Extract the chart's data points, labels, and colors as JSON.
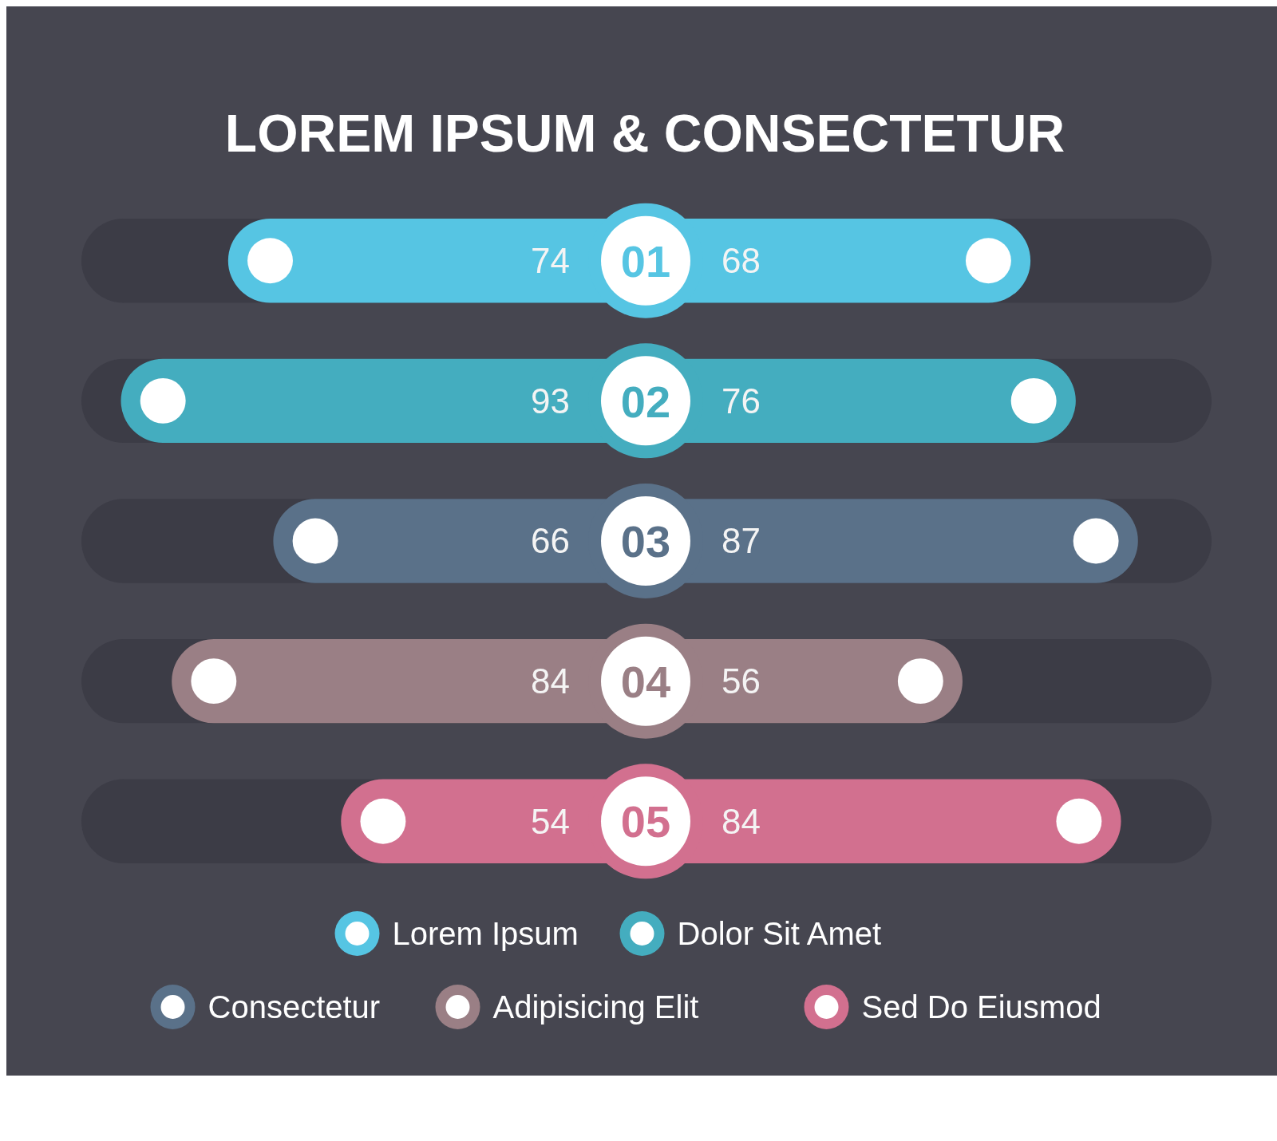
{
  "chart_data": [
    {
      "type": "bar",
      "orientation": "horizontal",
      "title": "LOREM IPSUM & CONSECTETUR",
      "categories": [
        "01",
        "02",
        "03",
        "04",
        "05"
      ],
      "series": [
        {
          "name": "Lorem Ipsum",
          "color": "#56c5e3",
          "values": [
            74,
            null,
            null,
            null,
            null
          ]
        },
        {
          "name": "Dolor Sit Amet",
          "color": "#44adbf",
          "values": [
            null,
            93,
            null,
            null,
            null
          ]
        },
        {
          "name": "Consectetur",
          "color": "#5a7189",
          "values": [
            null,
            null,
            66,
            null,
            null
          ]
        },
        {
          "name": "Adipisicing Elit",
          "color": "#9a7f85",
          "values": [
            null,
            null,
            null,
            84,
            null
          ]
        },
        {
          "name": "Sed Do Eiusmod",
          "color": "#d2708f",
          "values": [
            null,
            null,
            null,
            null,
            54
          ]
        }
      ],
      "xlim": [
        100,
        0
      ],
      "data_labels": true,
      "marker": "circle",
      "legend": "bottom",
      "tick_labels": false
    },
    {
      "type": "bar",
      "orientation": "horizontal",
      "categories": [
        "01",
        "02",
        "03",
        "04",
        "05"
      ],
      "series": [
        {
          "color": "#56c5e3",
          "values": [
            68,
            null,
            null,
            null,
            null
          ]
        },
        {
          "color": "#44adbf",
          "values": [
            null,
            76,
            null,
            null,
            null
          ]
        },
        {
          "color": "#5a7189",
          "values": [
            null,
            null,
            87,
            null,
            null
          ]
        },
        {
          "color": "#9a7f85",
          "values": [
            null,
            null,
            null,
            56,
            null
          ]
        },
        {
          "color": "#d2708f",
          "values": [
            null,
            null,
            null,
            null,
            84
          ]
        }
      ],
      "xlim": [
        0,
        100
      ],
      "data_labels": true,
      "marker": "circle",
      "tick_labels": "y"
    }
  ]
}
